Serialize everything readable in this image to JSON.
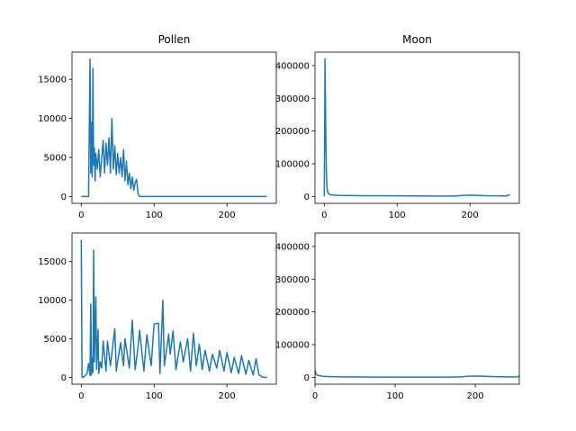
{
  "chart_data": [
    {
      "type": "line",
      "title": "Pollen",
      "color": "#1f77b4",
      "x": [
        0,
        10,
        12,
        13,
        14,
        15,
        16,
        17,
        18,
        19,
        20,
        22,
        24,
        26,
        28,
        30,
        32,
        34,
        36,
        38,
        40,
        42,
        44,
        46,
        48,
        50,
        52,
        54,
        56,
        58,
        60,
        62,
        64,
        66,
        68,
        70,
        72,
        74,
        76,
        78,
        80,
        100,
        150,
        200,
        255
      ],
      "values": [
        0,
        0,
        17600,
        3000,
        9500,
        2500,
        16400,
        4000,
        6200,
        2000,
        5500,
        3500,
        6000,
        2500,
        4800,
        7200,
        3000,
        6800,
        4000,
        7500,
        3000,
        10000,
        3500,
        6500,
        2800,
        5500,
        3000,
        5000,
        2500,
        6000,
        2000,
        4500,
        1500,
        3000,
        1000,
        2500,
        800,
        1800,
        2200,
        300,
        0,
        0,
        0,
        0,
        0
      ],
      "xlim": [
        -12.75,
        267.75
      ],
      "xticks": [
        0,
        100,
        200
      ],
      "ylim": [
        -880,
        18480
      ],
      "yticks": [
        0,
        5000,
        10000,
        15000
      ]
    },
    {
      "type": "line",
      "title": "Moon",
      "color": "#1f77b4",
      "x": [
        0,
        1,
        2,
        3,
        4,
        5,
        6,
        8,
        10,
        15,
        20,
        30,
        50,
        100,
        150,
        180,
        190,
        200,
        210,
        220,
        240,
        250,
        253,
        255
      ],
      "values": [
        0,
        420000,
        200000,
        60000,
        20000,
        12000,
        8000,
        6000,
        5000,
        4000,
        3500,
        3000,
        2500,
        2000,
        1500,
        1500,
        3000,
        4000,
        3500,
        2500,
        2000,
        1500,
        5000,
        3000
      ],
      "xlim": [
        -12.75,
        267.75
      ],
      "xticks": [
        0,
        100,
        200
      ],
      "ylim": [
        -21000,
        441000
      ],
      "yticks": [
        0,
        100000,
        200000,
        300000,
        400000
      ]
    },
    {
      "type": "line",
      "color": "#1f77b4",
      "x": [
        0,
        1,
        3,
        5,
        8,
        10,
        12,
        13,
        14,
        15,
        16,
        17,
        18,
        20,
        21,
        22,
        23,
        24,
        26,
        28,
        30,
        34,
        36,
        40,
        46,
        48,
        54,
        58,
        60,
        66,
        70,
        74,
        78,
        80,
        86,
        90,
        96,
        100,
        106,
        108,
        112,
        114,
        120,
        122,
        126,
        130,
        136,
        140,
        146,
        150,
        154,
        158,
        162,
        166,
        170,
        176,
        180,
        186,
        190,
        196,
        200,
        206,
        210,
        216,
        220,
        226,
        230,
        236,
        240,
        244,
        250,
        255
      ],
      "values": [
        17800,
        0,
        0,
        200,
        500,
        1800,
        200,
        9500,
        300,
        2500,
        600,
        16500,
        2000,
        10400,
        1000,
        3500,
        6200,
        500,
        2000,
        1200,
        4700,
        800,
        4700,
        1500,
        6300,
        800,
        4500,
        1500,
        5000,
        1200,
        7400,
        1000,
        4000,
        6100,
        800,
        5500,
        1500,
        6900,
        7000,
        500,
        10000,
        1500,
        5600,
        3000,
        6000,
        1000,
        4600,
        2000,
        5000,
        800,
        5700,
        1500,
        4300,
        1000,
        3500,
        800,
        3000,
        1200,
        3500,
        800,
        3200,
        600,
        2600,
        500,
        2800,
        400,
        2200,
        300,
        2400,
        300,
        0,
        0
      ],
      "xlim": [
        -12.75,
        267.75
      ],
      "xticks": [
        0,
        100,
        200
      ],
      "ylim": [
        -890,
        18690
      ],
      "yticks": [
        0,
        5000,
        10000,
        15000
      ]
    },
    {
      "type": "line",
      "color": "#1f77b4",
      "x": [
        0,
        2,
        5,
        10,
        20,
        50,
        100,
        150,
        180,
        190,
        200,
        220,
        240,
        250,
        255
      ],
      "values": [
        20000,
        8000,
        5000,
        3000,
        2000,
        1000,
        500,
        500,
        1000,
        3000,
        4000,
        2500,
        1500,
        1000,
        3000
      ],
      "xlim": [
        0,
        255
      ],
      "xticks": [
        0,
        100,
        200
      ],
      "ylim": [
        -21000,
        441000
      ],
      "yticks": [
        0,
        100000,
        200000,
        300000,
        400000
      ]
    }
  ]
}
